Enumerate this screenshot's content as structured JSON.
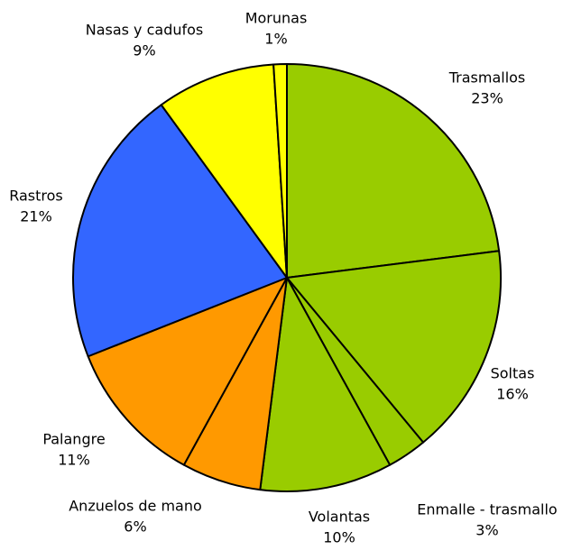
{
  "chart_data": {
    "type": "pie",
    "categories": [
      "Trasmallos",
      "Soltas",
      "Enmalle - trasmallo",
      "Volantas",
      "Anzuelos de mano",
      "Palangre",
      "Rastros",
      "Nasas y cadufos",
      "Morunas"
    ],
    "values": [
      23,
      16,
      3,
      10,
      6,
      11,
      21,
      9,
      1
    ],
    "value_labels": [
      "23%",
      "16%",
      "3%",
      "10%",
      "6%",
      "11%",
      "21%",
      "9%",
      "1%"
    ],
    "colors": [
      "#99cc00",
      "#99cc00",
      "#99cc00",
      "#99cc00",
      "#ff9900",
      "#ff9900",
      "#3366ff",
      "#ffff00",
      "#ffff00"
    ]
  }
}
